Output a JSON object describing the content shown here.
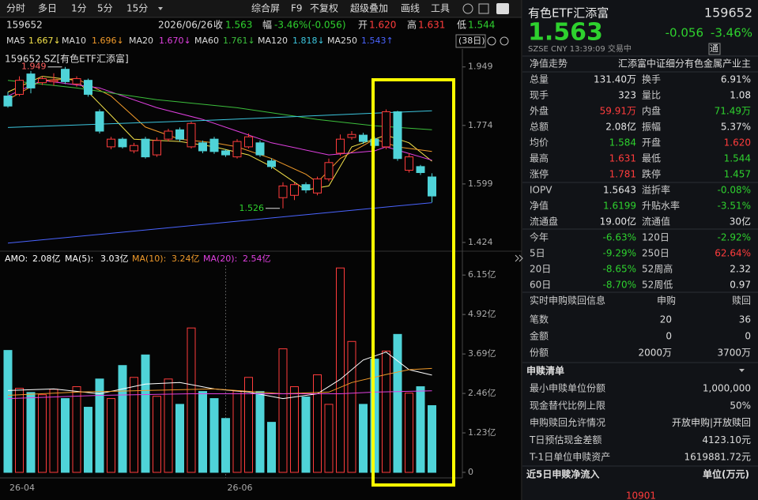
{
  "palette": {
    "up": "#ff3c3c",
    "down": "#2ed12e",
    "flat": "#e6e6e6"
  },
  "toolbar": {
    "periods": [
      "分时",
      "多日",
      "1分",
      "5分",
      "15分"
    ],
    "tools": [
      "综合屏",
      "F9",
      "不复权",
      "超级叠加",
      "画线",
      "工具"
    ]
  },
  "quote_bar": {
    "code": "159652",
    "date": "2026/06/26",
    "items": [
      {
        "label": "收",
        "value": "1.563",
        "tone": "down"
      },
      {
        "label": "幅",
        "value": "-3.46%(-0.056)",
        "tone": "down"
      },
      {
        "label": "开",
        "value": "1.620",
        "tone": "up"
      },
      {
        "label": "高",
        "value": "1.631",
        "tone": "up"
      },
      {
        "label": "低",
        "value": "1.544",
        "tone": "down"
      }
    ],
    "range": "(38日)"
  },
  "chart_data": [
    {
      "type": "candlestick",
      "title": "159652.SZ[有色ETF汇添富]",
      "categories": [
        "26-04",
        null,
        null,
        null,
        null,
        null,
        null,
        null,
        null,
        null,
        null,
        null,
        null,
        null,
        null,
        null,
        null,
        null,
        null,
        "26-06",
        null,
        null,
        null,
        null,
        null,
        null,
        null,
        null,
        null,
        null,
        null,
        null,
        null,
        null,
        null,
        null,
        null,
        null
      ],
      "open": [
        1.862,
        1.867,
        1.928,
        1.902,
        1.905,
        1.942,
        1.898,
        1.909,
        1.815,
        1.71,
        1.733,
        1.698,
        1.733,
        1.686,
        1.733,
        1.761,
        1.71,
        1.722,
        1.733,
        1.698,
        1.68,
        1.71,
        1.722,
        1.668,
        1.558,
        1.565,
        1.597,
        1.572,
        1.614,
        1.691,
        1.738,
        1.745,
        1.733,
        1.71,
        1.815,
        1.64,
        1.651,
        1.62
      ],
      "high": [
        1.874,
        1.921,
        1.937,
        1.921,
        1.93,
        1.949,
        1.921,
        1.914,
        1.822,
        1.74,
        1.738,
        1.722,
        1.74,
        1.738,
        1.764,
        1.768,
        1.785,
        1.729,
        1.74,
        1.703,
        1.733,
        1.75,
        1.729,
        1.675,
        1.604,
        1.604,
        1.604,
        1.621,
        1.675,
        1.747,
        1.757,
        1.752,
        1.74,
        1.822,
        1.818,
        1.691,
        1.656,
        1.631
      ],
      "low": [
        1.827,
        1.862,
        1.87,
        1.895,
        1.893,
        1.898,
        1.89,
        1.86,
        1.75,
        1.703,
        1.705,
        1.691,
        1.675,
        1.68,
        1.726,
        1.726,
        1.705,
        1.691,
        1.689,
        1.68,
        1.675,
        1.705,
        1.68,
        1.644,
        1.526,
        1.551,
        1.572,
        1.565,
        1.607,
        1.684,
        1.731,
        1.719,
        1.707,
        1.703,
        1.668,
        1.633,
        1.626,
        1.544
      ],
      "close": [
        1.832,
        1.909,
        1.886,
        1.914,
        1.909,
        1.905,
        1.914,
        1.867,
        1.757,
        1.733,
        1.71,
        1.714,
        1.68,
        1.729,
        1.757,
        1.733,
        1.78,
        1.698,
        1.696,
        1.686,
        1.726,
        1.74,
        1.686,
        1.651,
        1.593,
        1.597,
        1.581,
        1.614,
        1.663,
        1.733,
        1.747,
        1.726,
        1.714,
        1.815,
        1.675,
        1.68,
        1.633,
        1.563
      ],
      "colors": {
        "up": "#ff3c3c",
        "down": "#4fd3d8"
      },
      "annotations": {
        "high": "1.949",
        "low": "1.526"
      },
      "ylim": [
        1.405,
        1.998
      ],
      "yticks": [
        1.949,
        1.774,
        1.599,
        1.424
      ],
      "series": [
        {
          "name": "MA5",
          "legend_value": "1.667↓",
          "color": "#f3e24a",
          "x": [
            0,
            3,
            6,
            9,
            11,
            15,
            18,
            21,
            23,
            26,
            28,
            30,
            33,
            35,
            37
          ],
          "values": [
            1.874,
            1.921,
            1.909,
            1.804,
            1.733,
            1.726,
            1.71,
            1.686,
            1.651,
            1.581,
            1.593,
            1.71,
            1.745,
            1.722,
            1.667
          ]
        },
        {
          "name": "MA10",
          "legend_value": "1.696↓",
          "color": "#f09a2a",
          "x": [
            0,
            3,
            6,
            9,
            12,
            15,
            18,
            20,
            23,
            26,
            27,
            29,
            32,
            34,
            37
          ],
          "values": [
            1.851,
            1.909,
            1.914,
            1.862,
            1.769,
            1.733,
            1.722,
            1.71,
            1.675,
            1.628,
            1.604,
            1.675,
            1.733,
            1.71,
            1.696
          ]
        },
        {
          "name": "MA20",
          "legend_value": "1.670↓",
          "color": "#e040e0",
          "x": [
            0,
            3,
            8,
            13,
            17,
            20,
            23,
            28,
            32,
            33,
            37
          ],
          "values": [
            1.862,
            1.909,
            1.886,
            1.827,
            1.792,
            1.757,
            1.722,
            1.686,
            1.698,
            1.71,
            1.67
          ]
        },
        {
          "name": "MA60",
          "legend_value": "1.761↓",
          "color": "#3cbf3c",
          "x": [
            0,
            6,
            13,
            20,
            27,
            32,
            37
          ],
          "values": [
            1.909,
            1.886,
            1.851,
            1.827,
            1.792,
            1.773,
            1.761
          ]
        },
        {
          "name": "MA120",
          "legend_value": "1.818↓",
          "color": "#3cc6de",
          "x": [
            0,
            18,
            37
          ],
          "values": [
            1.768,
            1.79,
            1.818
          ]
        },
        {
          "name": "MA250",
          "legend_value": "1.543↑",
          "color": "#4a64ff",
          "x": [
            0,
            37
          ],
          "values": [
            1.422,
            1.543
          ]
        }
      ]
    },
    {
      "type": "bar",
      "name": "AMO:",
      "legend_value": "2.08亿",
      "legend_color": "#ffffff",
      "values": [
        3.8,
        2.62,
        2.49,
        2.42,
        2.59,
        2.3,
        2.67,
        2.03,
        2.91,
        2.3,
        3.33,
        2.96,
        3.66,
        2.37,
        2.91,
        2.12,
        4.5,
        2.52,
        2.3,
        1.68,
        2.54,
        2.96,
        2.52,
        1.56,
        3.85,
        2.67,
        2.35,
        3.04,
        2.12,
        6.37,
        4.08,
        2.12,
        3.53,
        3.78,
        4.3,
        2.47,
        2.67,
        2.08
      ],
      "ylim": [
        0,
        6.45
      ],
      "yticks": [
        {
          "value": 6.15,
          "label": "6.15亿"
        },
        {
          "value": 4.92,
          "label": "4.92亿"
        },
        {
          "value": 3.69,
          "label": "3.69亿"
        },
        {
          "value": 2.46,
          "label": "2.46亿"
        },
        {
          "value": 1.23,
          "label": "1.23亿"
        },
        0
      ],
      "series": [
        {
          "name": "MA(5):",
          "legend_value": "3.03亿",
          "color": "#ffffff",
          "x": [
            0,
            4,
            8,
            12,
            15,
            18,
            21,
            24,
            27,
            29,
            31,
            33,
            35,
            37
          ],
          "values": [
            2.55,
            2.6,
            2.45,
            2.75,
            2.8,
            2.6,
            2.5,
            2.3,
            2.45,
            2.9,
            3.5,
            3.75,
            3.2,
            3.03
          ]
        },
        {
          "name": "MA(10):",
          "legend_value": "3.24亿",
          "color": "#f09a2a",
          "x": [
            0,
            6,
            12,
            18,
            24,
            28,
            30,
            33,
            35,
            37
          ],
          "values": [
            2.4,
            2.5,
            2.55,
            2.6,
            2.45,
            2.5,
            2.8,
            3.05,
            3.2,
            3.24
          ]
        },
        {
          "name": "MA(20):",
          "legend_value": "2.54亿",
          "color": "#e040e0",
          "x": [
            0,
            8,
            16,
            24,
            29,
            32,
            37
          ],
          "values": [
            2.3,
            2.4,
            2.45,
            2.45,
            2.45,
            2.5,
            2.54
          ]
        }
      ]
    }
  ],
  "quote": {
    "name": "有色ETF汇添富",
    "code": "159652",
    "price": "1.563",
    "change": "-0.056",
    "pct": "-3.46%",
    "tone": "down",
    "meta": "SZSE  CNY  13:39:09 交易中",
    "badge": "通"
  },
  "nav_row": {
    "label": "净值走势",
    "text": "汇添富中证细分有色金属产业主"
  },
  "stats": [
    [
      {
        "label": "总量",
        "value": "131.40万",
        "tone": "flat"
      },
      {
        "label": "换手",
        "value": "6.91%",
        "tone": "flat"
      }
    ],
    [
      {
        "label": "现手",
        "value": "323",
        "tone": "flat"
      },
      {
        "label": "量比",
        "value": "1.08",
        "tone": "flat"
      }
    ],
    [
      {
        "label": "外盘",
        "value": "59.91万",
        "tone": "up"
      },
      {
        "label": "内盘",
        "value": "71.49万",
        "tone": "down"
      }
    ],
    [
      {
        "label": "总额",
        "value": "2.08亿",
        "tone": "flat"
      },
      {
        "label": "振幅",
        "value": "5.37%",
        "tone": "flat"
      }
    ],
    [
      {
        "label": "均价",
        "value": "1.584",
        "tone": "down"
      },
      {
        "label": "开盘",
        "value": "1.620",
        "tone": "up"
      }
    ],
    [
      {
        "label": "最高",
        "value": "1.631",
        "tone": "up"
      },
      {
        "label": "最低",
        "value": "1.544",
        "tone": "down"
      }
    ],
    [
      {
        "label": "涨停",
        "value": "1.781",
        "tone": "up"
      },
      {
        "label": "跌停",
        "value": "1.457",
        "tone": "down"
      }
    ],
    [
      {
        "label": "IOPV",
        "value": "1.5643",
        "tone": "flat"
      },
      {
        "label": "溢折率",
        "value": "-0.08%",
        "tone": "down"
      }
    ],
    [
      {
        "label": "净值",
        "value": "1.6199",
        "tone": "down"
      },
      {
        "label": "升贴水率",
        "value": "-3.51%",
        "tone": "down"
      }
    ],
    [
      {
        "label": "流通盘",
        "value": "19.00亿",
        "tone": "flat"
      },
      {
        "label": "流通值",
        "value": "30亿",
        "tone": "flat"
      }
    ],
    [
      {
        "label": "今年",
        "value": "-6.63%",
        "tone": "down"
      },
      {
        "label": "120日",
        "value": "-2.92%",
        "tone": "down"
      }
    ],
    [
      {
        "label": "5日",
        "value": "-9.29%",
        "tone": "down"
      },
      {
        "label": "250日",
        "value": "62.64%",
        "tone": "up"
      }
    ],
    [
      {
        "label": "20日",
        "value": "-8.65%",
        "tone": "down"
      },
      {
        "label": "52周高",
        "value": "2.32",
        "tone": "flat"
      }
    ],
    [
      {
        "label": "60日",
        "value": "-8.70%",
        "tone": "down"
      },
      {
        "label": "52周低",
        "value": "0.97",
        "tone": "flat"
      }
    ]
  ],
  "subscription": {
    "title": "实时申购赎回信息",
    "columns": [
      "申购",
      "赎回"
    ],
    "rows": [
      [
        "笔数",
        "20",
        "36"
      ],
      [
        "金额",
        "0",
        "0"
      ],
      [
        "份额",
        "2000万",
        "3700万"
      ]
    ]
  },
  "creation_list": {
    "title": "申赎清单",
    "rows": [
      [
        "最小申赎单位份额",
        "1,000,000"
      ],
      [
        "现金替代比例上限",
        "50%"
      ],
      [
        "申购赎回允许情况",
        "开放申购|开放赎回"
      ],
      [
        "T日预估现金差额",
        "4123.10元"
      ],
      [
        "T-1日单位申赎资产",
        "1619881.72元"
      ]
    ]
  },
  "flow": {
    "title": "近5日申赎净流入",
    "unit": "单位(万元)",
    "first": "10901"
  }
}
